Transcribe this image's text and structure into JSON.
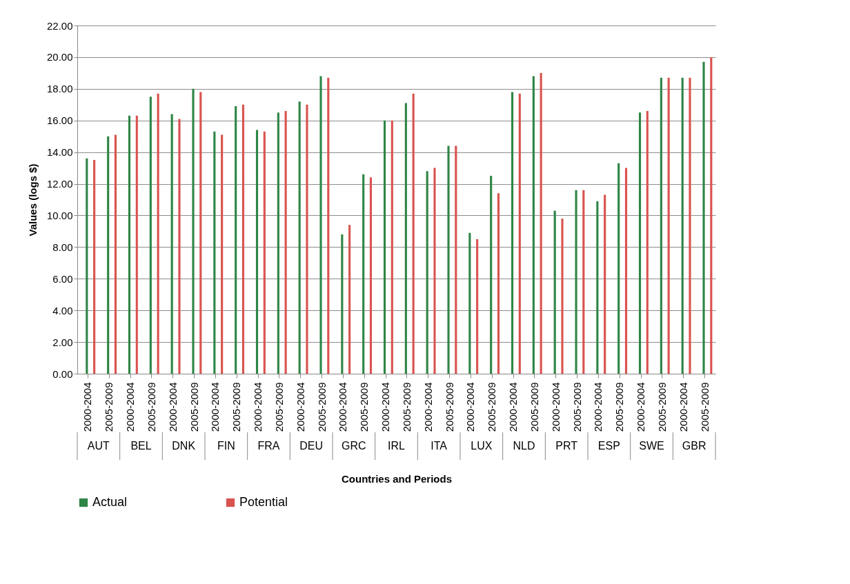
{
  "chart_data": {
    "type": "bar",
    "ylabel": "Values (logs $)",
    "xlabel": "Countries and Periods",
    "categories": [
      "2000-2004",
      "2005-2009",
      "2000-2004",
      "2005-2009",
      "2000-2004",
      "2005-2009",
      "2000-2004",
      "2005-2009",
      "2000-2004",
      "2005-2009",
      "2000-2004",
      "2005-2009",
      "2000-2004",
      "2005-2009",
      "2000-2004",
      "2005-2009",
      "2000-2004",
      "2005-2009",
      "2000-2004",
      "2005-2009",
      "2000-2004",
      "2005-2009",
      "2000-2004",
      "2005-2009",
      "2000-2004",
      "2005-2009",
      "2000-2004",
      "2005-2009",
      "2000-2004",
      "2005-2009"
    ],
    "annotations": [
      "AUT",
      "BEL",
      "DNK",
      "FIN",
      "FRA",
      "DEU",
      "GRC",
      "IRL",
      "ITA",
      "LUX",
      "NLD",
      "PRT",
      "ESP",
      "SWE",
      "GBR"
    ],
    "series": [
      {
        "name": "Actual",
        "color": "#2e8545",
        "values": [
          13.6,
          15.0,
          16.3,
          17.5,
          16.4,
          18.0,
          15.3,
          16.9,
          15.4,
          16.5,
          17.2,
          18.8,
          8.8,
          12.6,
          16.0,
          17.1,
          12.8,
          14.4,
          8.9,
          12.5,
          17.8,
          18.8,
          10.3,
          11.6,
          10.9,
          13.3,
          16.5,
          18.7,
          18.7,
          19.7
        ]
      },
      {
        "name": "Potential",
        "color": "#d9534f",
        "values": [
          13.5,
          15.1,
          16.3,
          17.7,
          16.1,
          17.8,
          15.1,
          17.0,
          15.3,
          16.6,
          17.0,
          18.7,
          9.4,
          12.4,
          16.0,
          17.7,
          13.0,
          14.4,
          8.5,
          11.4,
          17.7,
          19.0,
          9.8,
          11.6,
          11.3,
          13.0,
          16.6,
          18.7,
          18.7,
          20.0
        ]
      }
    ],
    "ylim": [
      0,
      22
    ],
    "yticks": [
      {
        "value": 0,
        "label": "0.00"
      },
      {
        "value": 2,
        "label": "2.00"
      },
      {
        "value": 4,
        "label": "4.00"
      },
      {
        "value": 6,
        "label": "6.00"
      },
      {
        "value": 8,
        "label": "8.00"
      },
      {
        "value": 10,
        "label": "10.00"
      },
      {
        "value": 12,
        "label": "12.00"
      },
      {
        "value": 14,
        "label": "14.00"
      },
      {
        "value": 16,
        "label": "16.00"
      },
      {
        "value": 18,
        "label": "18.00"
      },
      {
        "value": 20,
        "label": "20.00"
      },
      {
        "value": 22,
        "label": "22.00"
      }
    ],
    "grid": "y",
    "legend": "bottom"
  }
}
